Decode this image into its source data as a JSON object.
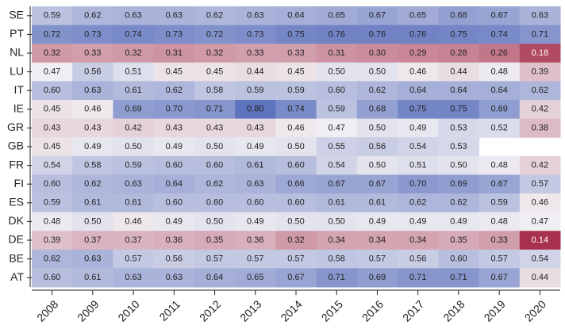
{
  "chart_data": {
    "type": "heatmap",
    "rows": [
      "SE",
      "PT",
      "NL",
      "LU",
      "IT",
      "IE",
      "GR",
      "GB",
      "FR",
      "FI",
      "ES",
      "DK",
      "DE",
      "BE",
      "AT"
    ],
    "columns": [
      "2008",
      "2009",
      "2010",
      "2011",
      "2012",
      "2013",
      "2014",
      "2015",
      "2016",
      "2017",
      "2018",
      "2019",
      "2020"
    ],
    "values": [
      [
        0.59,
        0.62,
        0.63,
        0.63,
        0.62,
        0.63,
        0.64,
        0.65,
        0.67,
        0.65,
        0.68,
        0.67,
        0.63
      ],
      [
        0.72,
        0.73,
        0.74,
        0.73,
        0.72,
        0.73,
        0.75,
        0.76,
        0.76,
        0.76,
        0.75,
        0.74,
        0.71
      ],
      [
        0.32,
        0.33,
        0.32,
        0.31,
        0.32,
        0.33,
        0.33,
        0.31,
        0.3,
        0.29,
        0.28,
        0.26,
        0.18
      ],
      [
        0.47,
        0.56,
        0.51,
        0.45,
        0.45,
        0.44,
        0.45,
        0.5,
        0.5,
        0.46,
        0.44,
        0.48,
        0.39
      ],
      [
        0.6,
        0.63,
        0.61,
        0.62,
        0.58,
        0.59,
        0.59,
        0.6,
        0.62,
        0.64,
        0.64,
        0.64,
        0.62
      ],
      [
        0.45,
        0.46,
        0.69,
        0.7,
        0.71,
        0.8,
        0.74,
        0.59,
        0.68,
        0.75,
        0.75,
        0.69,
        0.42
      ],
      [
        0.43,
        0.43,
        0.42,
        0.43,
        0.43,
        0.43,
        0.46,
        0.47,
        0.5,
        0.49,
        0.53,
        0.52,
        0.38
      ],
      [
        0.45,
        0.49,
        0.5,
        0.49,
        0.5,
        0.49,
        0.5,
        0.55,
        0.56,
        0.54,
        0.53,
        null,
        null
      ],
      [
        0.54,
        0.58,
        0.59,
        0.6,
        0.6,
        0.61,
        0.6,
        0.54,
        0.5,
        0.51,
        0.5,
        0.48,
        0.42
      ],
      [
        0.6,
        0.62,
        0.63,
        0.64,
        0.62,
        0.63,
        0.66,
        0.67,
        0.67,
        0.7,
        0.69,
        0.67,
        0.57
      ],
      [
        0.59,
        0.61,
        0.61,
        0.6,
        0.6,
        0.6,
        0.6,
        0.61,
        0.61,
        0.62,
        0.62,
        0.59,
        0.46
      ],
      [
        0.48,
        0.5,
        0.46,
        0.49,
        0.5,
        0.49,
        0.5,
        0.5,
        0.49,
        0.49,
        0.49,
        0.48,
        0.47
      ],
      [
        0.39,
        0.37,
        0.37,
        0.36,
        0.35,
        0.36,
        0.32,
        0.34,
        0.34,
        0.34,
        0.35,
        0.33,
        0.14
      ],
      [
        0.62,
        0.63,
        0.57,
        0.56,
        0.57,
        0.57,
        0.57,
        0.58,
        0.57,
        0.56,
        0.6,
        0.57,
        0.54
      ],
      [
        0.6,
        0.61,
        0.63,
        0.63,
        0.64,
        0.65,
        0.67,
        0.71,
        0.69,
        0.71,
        0.71,
        0.67,
        0.44
      ]
    ],
    "value_labels": [
      [
        "0.59",
        "0.62",
        "0.63",
        "0.63",
        "0.62",
        "0.63",
        "0.64",
        "0.65",
        "0.67",
        "0.65",
        "0.68",
        "0.67",
        "0.63"
      ],
      [
        "0.72",
        "0.73",
        "0.74",
        "0.73",
        "0.72",
        "0.73",
        "0.75",
        "0.76",
        "0.76",
        "0.76",
        "0.75",
        "0.74",
        "0.71"
      ],
      [
        "0.32",
        "0.33",
        "0.32",
        "0.31",
        "0.32",
        "0.33",
        "0.33",
        "0.31",
        "0.30",
        "0.29",
        "0.28",
        "0.26",
        "0.18"
      ],
      [
        "0.47",
        "0.56",
        "0.51",
        "0.45",
        "0.45",
        "0.44",
        "0.45",
        "0.50",
        "0.50",
        "0.46",
        "0.44",
        "0.48",
        "0.39"
      ],
      [
        "0.60",
        "0.63",
        "0.61",
        "0.62",
        "0.58",
        "0.59",
        "0.59",
        "0.60",
        "0.62",
        "0.64",
        "0.64",
        "0.64",
        "0.62"
      ],
      [
        "0.45",
        "0.46",
        "0.69",
        "0.70",
        "0.71",
        "0.80",
        "0.74",
        "0.59",
        "0.68",
        "0.75",
        "0.75",
        "0.69",
        "0.42"
      ],
      [
        "0.43",
        "0.43",
        "0.42",
        "0.43",
        "0.43",
        "0.43",
        "0.46",
        "0.47",
        "0.50",
        "0.49",
        "0.53",
        "0.52",
        "0.38"
      ],
      [
        "0.45",
        "0.49",
        "0.50",
        "0.49",
        "0.50",
        "0.49",
        "0.50",
        "0.55",
        "0.56",
        "0.54",
        "0.53",
        null,
        null
      ],
      [
        "0.54",
        "0.58",
        "0.59",
        "0.60",
        "0.60",
        "0.61",
        "0.60",
        "0.54",
        "0.50",
        "0.51",
        "0.50",
        "0.48",
        "0.42"
      ],
      [
        "0.60",
        "0.62",
        "0.63",
        "0.64",
        "0.62",
        "0.63",
        "0.66",
        "0.67",
        "0.67",
        "0.70",
        "0.69",
        "0.67",
        "0.57"
      ],
      [
        "0.59",
        "0.61",
        "0.61",
        "0.60",
        "0.60",
        "0.60",
        "0.60",
        "0.61",
        "0.61",
        "0.62",
        "0.62",
        "0.59",
        "0.46"
      ],
      [
        "0.48",
        "0.50",
        "0.46",
        "0.49",
        "0.50",
        "0.49",
        "0.50",
        "0.50",
        "0.49",
        "0.49",
        "0.49",
        "0.48",
        "0.47"
      ],
      [
        "0.39",
        "0.37",
        "0.37",
        "0.36",
        "0.35",
        "0.36",
        "0.32",
        "0.34",
        "0.34",
        "0.34",
        "0.35",
        "0.33",
        "0.14"
      ],
      [
        "0.62",
        "0.63",
        "0.57",
        "0.56",
        "0.57",
        "0.57",
        "0.57",
        "0.58",
        "0.57",
        "0.56",
        "0.60",
        "0.57",
        "0.54"
      ],
      [
        "0.60",
        "0.61",
        "0.63",
        "0.63",
        "0.64",
        "0.65",
        "0.67",
        "0.71",
        "0.69",
        "0.71",
        "0.71",
        "0.67",
        "0.44"
      ]
    ],
    "colormap": [
      "#a8324e",
      "#f0eef2",
      "#5f74bf"
    ],
    "clim": [
      0.14,
      0.8
    ]
  }
}
